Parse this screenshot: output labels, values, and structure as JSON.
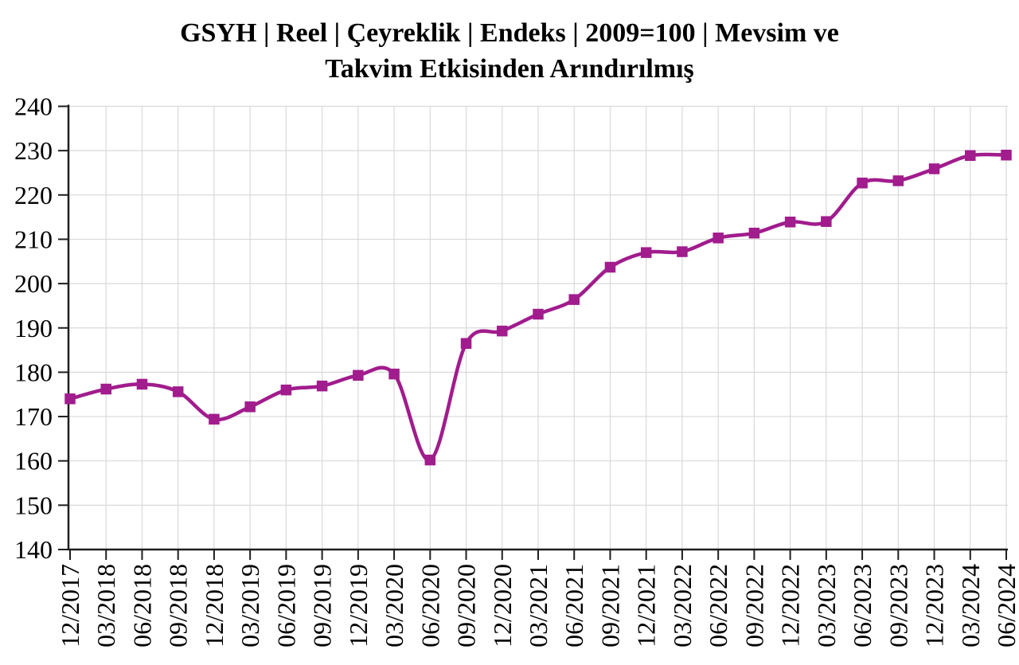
{
  "chart_data": {
    "type": "line",
    "title": "GSYH | Reel | Çeyreklik | Endeks | 2009=100 | Mevsim ve Takvim Etkisinden Arındırılmış",
    "title_lines": [
      "GSYH | Reel | Çeyreklik | Endeks | 2009=100 | Mevsim ve",
      "Takvim Etkisinden Arındırılmış"
    ],
    "categories": [
      "12/2017",
      "03/2018",
      "06/2018",
      "09/2018",
      "12/2018",
      "03/2019",
      "06/2019",
      "09/2019",
      "12/2019",
      "03/2020",
      "06/2020",
      "09/2020",
      "12/2020",
      "03/2021",
      "06/2021",
      "09/2021",
      "12/2021",
      "03/2022",
      "06/2022",
      "09/2022",
      "12/2022",
      "03/2023",
      "06/2023",
      "09/2023",
      "12/2023",
      "03/2024",
      "06/2024"
    ],
    "values": [
      174.0,
      176.2,
      177.3,
      175.6,
      169.4,
      172.2,
      176.0,
      176.9,
      179.3,
      179.6,
      160.2,
      186.5,
      189.3,
      193.1,
      196.4,
      203.7,
      207.0,
      207.2,
      210.3,
      211.4,
      213.9,
      214.0,
      222.7,
      223.2,
      225.9,
      228.9,
      229.0
    ],
    "xlabel": "",
    "ylabel": "",
    "ylim": [
      140,
      240
    ],
    "ytick_step": 10,
    "yticks": [
      140,
      150,
      160,
      170,
      180,
      190,
      200,
      210,
      220,
      230,
      240
    ],
    "grid": true,
    "legend": "none",
    "smooth": true,
    "marker": "square",
    "colors": {
      "line": "#A11C8D",
      "grid": "#D9D9D9",
      "axis": "#1F1F1F",
      "text": "#000000",
      "background": "#FFFFFF"
    }
  }
}
